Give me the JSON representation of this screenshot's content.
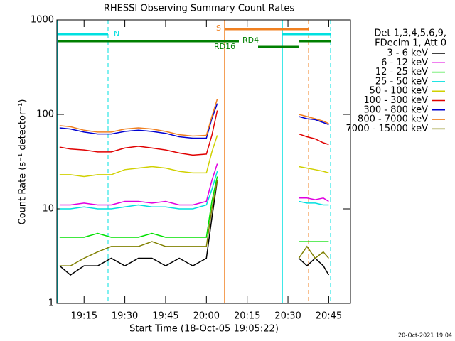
{
  "chart_data": {
    "type": "line",
    "title": "RHESSI Observing Summary Count Rates",
    "xlabel": "Start Time (18-Oct-05 19:05:22)",
    "ylabel": "Count Rate (s⁻¹ detector⁻¹)",
    "footer": "20-Oct-2021 19:04",
    "legend_title": [
      "Det 1,3,4,5,6,9,",
      "FDecim 1, Att 0"
    ],
    "annotations": [
      "N",
      "S",
      "RD4",
      "RD16"
    ],
    "log_y": true,
    "xlim": [
      "19:05",
      "20:53"
    ],
    "xticks": [
      "19:15",
      "19:30",
      "19:45",
      "20:00",
      "20:15",
      "20:30",
      "20:45"
    ],
    "ylim": [
      1,
      1000
    ],
    "yticks": [
      1,
      10,
      100,
      1000
    ],
    "x": [
      "19:06",
      "19:10",
      "19:15",
      "19:20",
      "19:25",
      "19:30",
      "19:35",
      "19:40",
      "19:45",
      "19:50",
      "19:55",
      "20:00",
      "20:02",
      "20:04",
      "20:15",
      "20:34",
      "20:37",
      "20:40",
      "20:43",
      "20:45"
    ],
    "series": [
      {
        "name": "3 - 6 keV",
        "color": "#000000",
        "values": [
          2.5,
          2,
          2.5,
          2.5,
          3,
          2.5,
          3,
          3,
          2.5,
          3,
          2.5,
          3,
          8,
          20,
          null,
          3,
          2.5,
          3,
          2.5,
          2
        ]
      },
      {
        "name": "6 - 12 keV",
        "color": "#e000e0",
        "values": [
          11,
          11,
          11.5,
          11,
          11,
          12,
          12,
          11.5,
          12,
          11,
          11,
          12,
          20,
          30,
          null,
          13,
          13,
          12.5,
          13,
          12
        ]
      },
      {
        "name": "12 - 25 keV",
        "color": "#00e000",
        "values": [
          5,
          5,
          5,
          5.5,
          5,
          5,
          5,
          5.5,
          5,
          5,
          5,
          5,
          12,
          22,
          null,
          4.5,
          4.5,
          4.5,
          4.5,
          4.5
        ]
      },
      {
        "name": "25 - 50 keV",
        "color": "#00e0e0",
        "values": [
          10,
          10,
          10.5,
          10,
          10,
          10.5,
          11,
          10.5,
          10.5,
          10,
          10,
          11,
          16,
          25,
          null,
          12,
          11.5,
          11.5,
          11,
          11
        ]
      },
      {
        "name": "50 - 100 keV",
        "color": "#d0d000",
        "values": [
          23,
          23,
          22,
          23,
          23,
          26,
          27,
          28,
          27,
          25,
          24,
          24,
          40,
          60,
          null,
          28,
          27,
          26,
          25,
          24
        ]
      },
      {
        "name": "100 - 300 keV",
        "color": "#e00000",
        "values": [
          45,
          43,
          42,
          40,
          40,
          44,
          46,
          44,
          42,
          39,
          37,
          38,
          60,
          110,
          null,
          62,
          58,
          55,
          50,
          48
        ]
      },
      {
        "name": "300 - 800 keV",
        "color": "#0000d0",
        "values": [
          72,
          70,
          65,
          62,
          62,
          66,
          68,
          66,
          63,
          58,
          56,
          56,
          90,
          130,
          null,
          95,
          90,
          88,
          82,
          78
        ]
      },
      {
        "name": "800 - 7000 keV",
        "color": "#f08020",
        "values": [
          76,
          74,
          68,
          65,
          65,
          70,
          72,
          70,
          66,
          61,
          59,
          60,
          95,
          145,
          null,
          100,
          95,
          90,
          85,
          80
        ]
      },
      {
        "name": "7000 - 15000 keV",
        "color": "#808000",
        "values": [
          2.5,
          2.5,
          3,
          3.5,
          4,
          4,
          4,
          4.5,
          4,
          4,
          4,
          4,
          10,
          20,
          null,
          3,
          4,
          3,
          3.5,
          3
        ]
      }
    ]
  }
}
